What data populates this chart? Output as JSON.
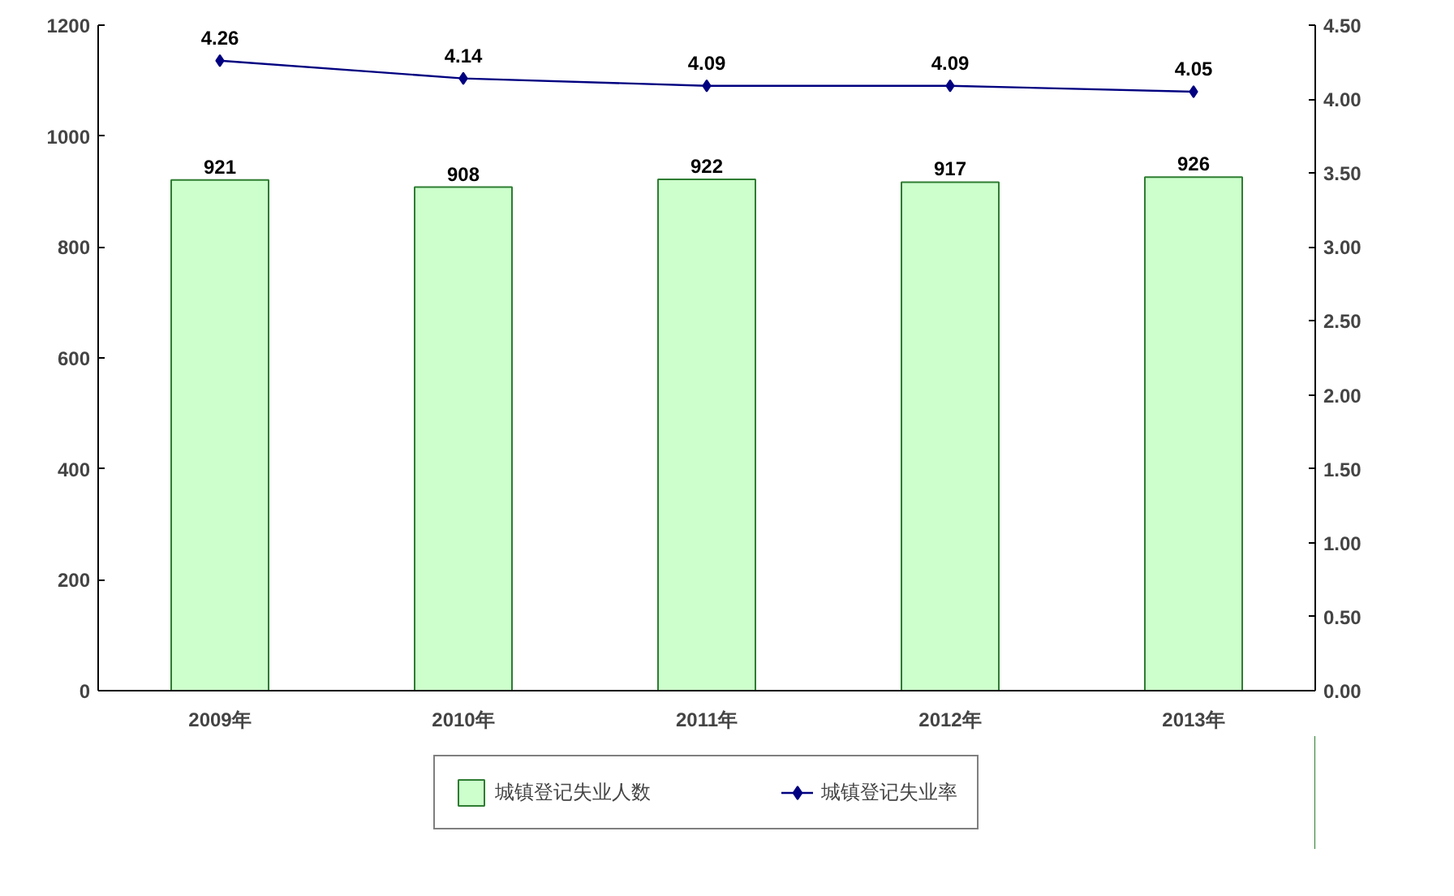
{
  "chart_data": {
    "type": "bar",
    "categories": [
      "2009年",
      "2010年",
      "2011年",
      "2012年",
      "2013年"
    ],
    "series": [
      {
        "name": "城镇登记失业人数",
        "color": "#ccffcc",
        "values": [
          921,
          908,
          922,
          917,
          926
        ]
      },
      {
        "name": "城镇登记失业率",
        "type": "line",
        "axis": "y2",
        "color": "#000080",
        "marker": "diamond",
        "values": [
          4.26,
          4.14,
          4.09,
          4.09,
          4.05
        ]
      }
    ],
    "ylim": [
      0,
      1200
    ],
    "yticks": [
      0,
      200,
      400,
      600,
      800,
      1000,
      1200
    ],
    "y2lim": [
      0,
      4.5
    ],
    "y2ticks": [
      {
        "value": 0,
        "label": "0.00"
      },
      {
        "value": 0.5,
        "label": "0.50"
      },
      {
        "value": 1,
        "label": "1.00"
      },
      {
        "value": 1.5,
        "label": "1.50"
      },
      {
        "value": 2,
        "label": "2.00"
      },
      {
        "value": 2.5,
        "label": "2.50"
      },
      {
        "value": 3,
        "label": "3.00"
      },
      {
        "value": 3.5,
        "label": "3.50"
      },
      {
        "value": 4,
        "label": "4.00"
      },
      {
        "value": 4.5,
        "label": "4.50"
      }
    ],
    "data_labels": true,
    "grid": false,
    "legend": "bottom"
  }
}
